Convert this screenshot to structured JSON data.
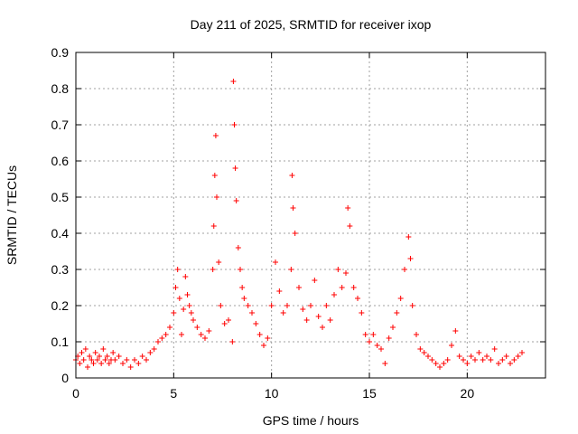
{
  "chart_data": {
    "type": "scatter",
    "title": "Day 211 of 2025, SRMTID for receiver ixop",
    "xlabel": "GPS time / hours",
    "ylabel": "SRMTID / TECUs",
    "xlim": [
      0,
      24
    ],
    "ylim": [
      0,
      0.9
    ],
    "xticks": [
      0,
      5,
      10,
      15,
      20
    ],
    "xtick_labels": [
      "0",
      "5",
      "10",
      "15",
      "20"
    ],
    "yticks": [
      0,
      0.1,
      0.2,
      0.3,
      0.4,
      0.5,
      0.6,
      0.7,
      0.8,
      0.9
    ],
    "ytick_labels": [
      "0",
      "0.1",
      "0.2",
      "0.3",
      "0.4",
      "0.5",
      "0.6",
      "0.7",
      "0.8",
      "0.9"
    ],
    "grid": true,
    "marker": "+",
    "color": "#ff0000",
    "series": [
      {
        "name": "SRMTID",
        "points": [
          [
            0.0,
            0.05
          ],
          [
            0.1,
            0.06
          ],
          [
            0.2,
            0.04
          ],
          [
            0.3,
            0.07
          ],
          [
            0.4,
            0.05
          ],
          [
            0.5,
            0.08
          ],
          [
            0.6,
            0.03
          ],
          [
            0.7,
            0.06
          ],
          [
            0.8,
            0.05
          ],
          [
            0.9,
            0.04
          ],
          [
            1.0,
            0.07
          ],
          [
            1.1,
            0.05
          ],
          [
            1.2,
            0.06
          ],
          [
            1.3,
            0.04
          ],
          [
            1.4,
            0.08
          ],
          [
            1.5,
            0.05
          ],
          [
            1.6,
            0.06
          ],
          [
            1.7,
            0.04
          ],
          [
            1.8,
            0.05
          ],
          [
            1.9,
            0.07
          ],
          [
            2.0,
            0.05
          ],
          [
            2.2,
            0.06
          ],
          [
            2.4,
            0.04
          ],
          [
            2.6,
            0.05
          ],
          [
            2.8,
            0.03
          ],
          [
            3.0,
            0.05
          ],
          [
            3.2,
            0.04
          ],
          [
            3.4,
            0.06
          ],
          [
            3.6,
            0.05
          ],
          [
            3.8,
            0.07
          ],
          [
            4.0,
            0.08
          ],
          [
            4.2,
            0.1
          ],
          [
            4.4,
            0.11
          ],
          [
            4.6,
            0.12
          ],
          [
            4.8,
            0.14
          ],
          [
            5.0,
            0.18
          ],
          [
            5.1,
            0.25
          ],
          [
            5.2,
            0.3
          ],
          [
            5.3,
            0.22
          ],
          [
            5.4,
            0.12
          ],
          [
            5.5,
            0.19
          ],
          [
            5.6,
            0.28
          ],
          [
            5.7,
            0.23
          ],
          [
            5.8,
            0.2
          ],
          [
            5.9,
            0.18
          ],
          [
            6.0,
            0.16
          ],
          [
            6.2,
            0.14
          ],
          [
            6.4,
            0.12
          ],
          [
            6.6,
            0.11
          ],
          [
            6.8,
            0.13
          ],
          [
            7.0,
            0.3
          ],
          [
            7.05,
            0.42
          ],
          [
            7.1,
            0.56
          ],
          [
            7.15,
            0.67
          ],
          [
            7.2,
            0.5
          ],
          [
            7.3,
            0.32
          ],
          [
            7.4,
            0.2
          ],
          [
            7.6,
            0.15
          ],
          [
            7.8,
            0.16
          ],
          [
            8.0,
            0.1
          ],
          [
            8.05,
            0.82
          ],
          [
            8.1,
            0.7
          ],
          [
            8.15,
            0.58
          ],
          [
            8.2,
            0.49
          ],
          [
            8.3,
            0.36
          ],
          [
            8.4,
            0.3
          ],
          [
            8.5,
            0.25
          ],
          [
            8.6,
            0.22
          ],
          [
            8.8,
            0.2
          ],
          [
            9.0,
            0.18
          ],
          [
            9.2,
            0.15
          ],
          [
            9.4,
            0.12
          ],
          [
            9.6,
            0.09
          ],
          [
            9.8,
            0.11
          ],
          [
            10.0,
            0.2
          ],
          [
            10.2,
            0.32
          ],
          [
            10.4,
            0.24
          ],
          [
            10.6,
            0.18
          ],
          [
            10.8,
            0.2
          ],
          [
            11.0,
            0.3
          ],
          [
            11.05,
            0.56
          ],
          [
            11.1,
            0.47
          ],
          [
            11.2,
            0.4
          ],
          [
            11.4,
            0.25
          ],
          [
            11.6,
            0.19
          ],
          [
            11.8,
            0.16
          ],
          [
            12.0,
            0.2
          ],
          [
            12.2,
            0.27
          ],
          [
            12.4,
            0.17
          ],
          [
            12.6,
            0.14
          ],
          [
            12.8,
            0.2
          ],
          [
            13.0,
            0.16
          ],
          [
            13.2,
            0.23
          ],
          [
            13.4,
            0.3
          ],
          [
            13.6,
            0.25
          ],
          [
            13.8,
            0.29
          ],
          [
            13.9,
            0.47
          ],
          [
            14.0,
            0.42
          ],
          [
            14.2,
            0.25
          ],
          [
            14.4,
            0.22
          ],
          [
            14.6,
            0.18
          ],
          [
            14.8,
            0.12
          ],
          [
            15.0,
            0.1
          ],
          [
            15.2,
            0.12
          ],
          [
            15.4,
            0.09
          ],
          [
            15.6,
            0.08
          ],
          [
            15.8,
            0.04
          ],
          [
            16.0,
            0.11
          ],
          [
            16.2,
            0.14
          ],
          [
            16.4,
            0.18
          ],
          [
            16.6,
            0.22
          ],
          [
            16.8,
            0.3
          ],
          [
            17.0,
            0.39
          ],
          [
            17.1,
            0.33
          ],
          [
            17.2,
            0.2
          ],
          [
            17.4,
            0.12
          ],
          [
            17.6,
            0.08
          ],
          [
            17.8,
            0.07
          ],
          [
            18.0,
            0.06
          ],
          [
            18.2,
            0.05
          ],
          [
            18.4,
            0.04
          ],
          [
            18.6,
            0.03
          ],
          [
            18.8,
            0.04
          ],
          [
            19.0,
            0.05
          ],
          [
            19.2,
            0.09
          ],
          [
            19.4,
            0.13
          ],
          [
            19.6,
            0.06
          ],
          [
            19.8,
            0.05
          ],
          [
            20.0,
            0.04
          ],
          [
            20.2,
            0.06
          ],
          [
            20.4,
            0.05
          ],
          [
            20.6,
            0.07
          ],
          [
            20.8,
            0.05
          ],
          [
            21.0,
            0.06
          ],
          [
            21.2,
            0.05
          ],
          [
            21.4,
            0.08
          ],
          [
            21.6,
            0.04
          ],
          [
            21.8,
            0.05
          ],
          [
            22.0,
            0.06
          ],
          [
            22.2,
            0.04
          ],
          [
            22.4,
            0.05
          ],
          [
            22.6,
            0.06
          ],
          [
            22.8,
            0.07
          ]
        ]
      }
    ]
  }
}
